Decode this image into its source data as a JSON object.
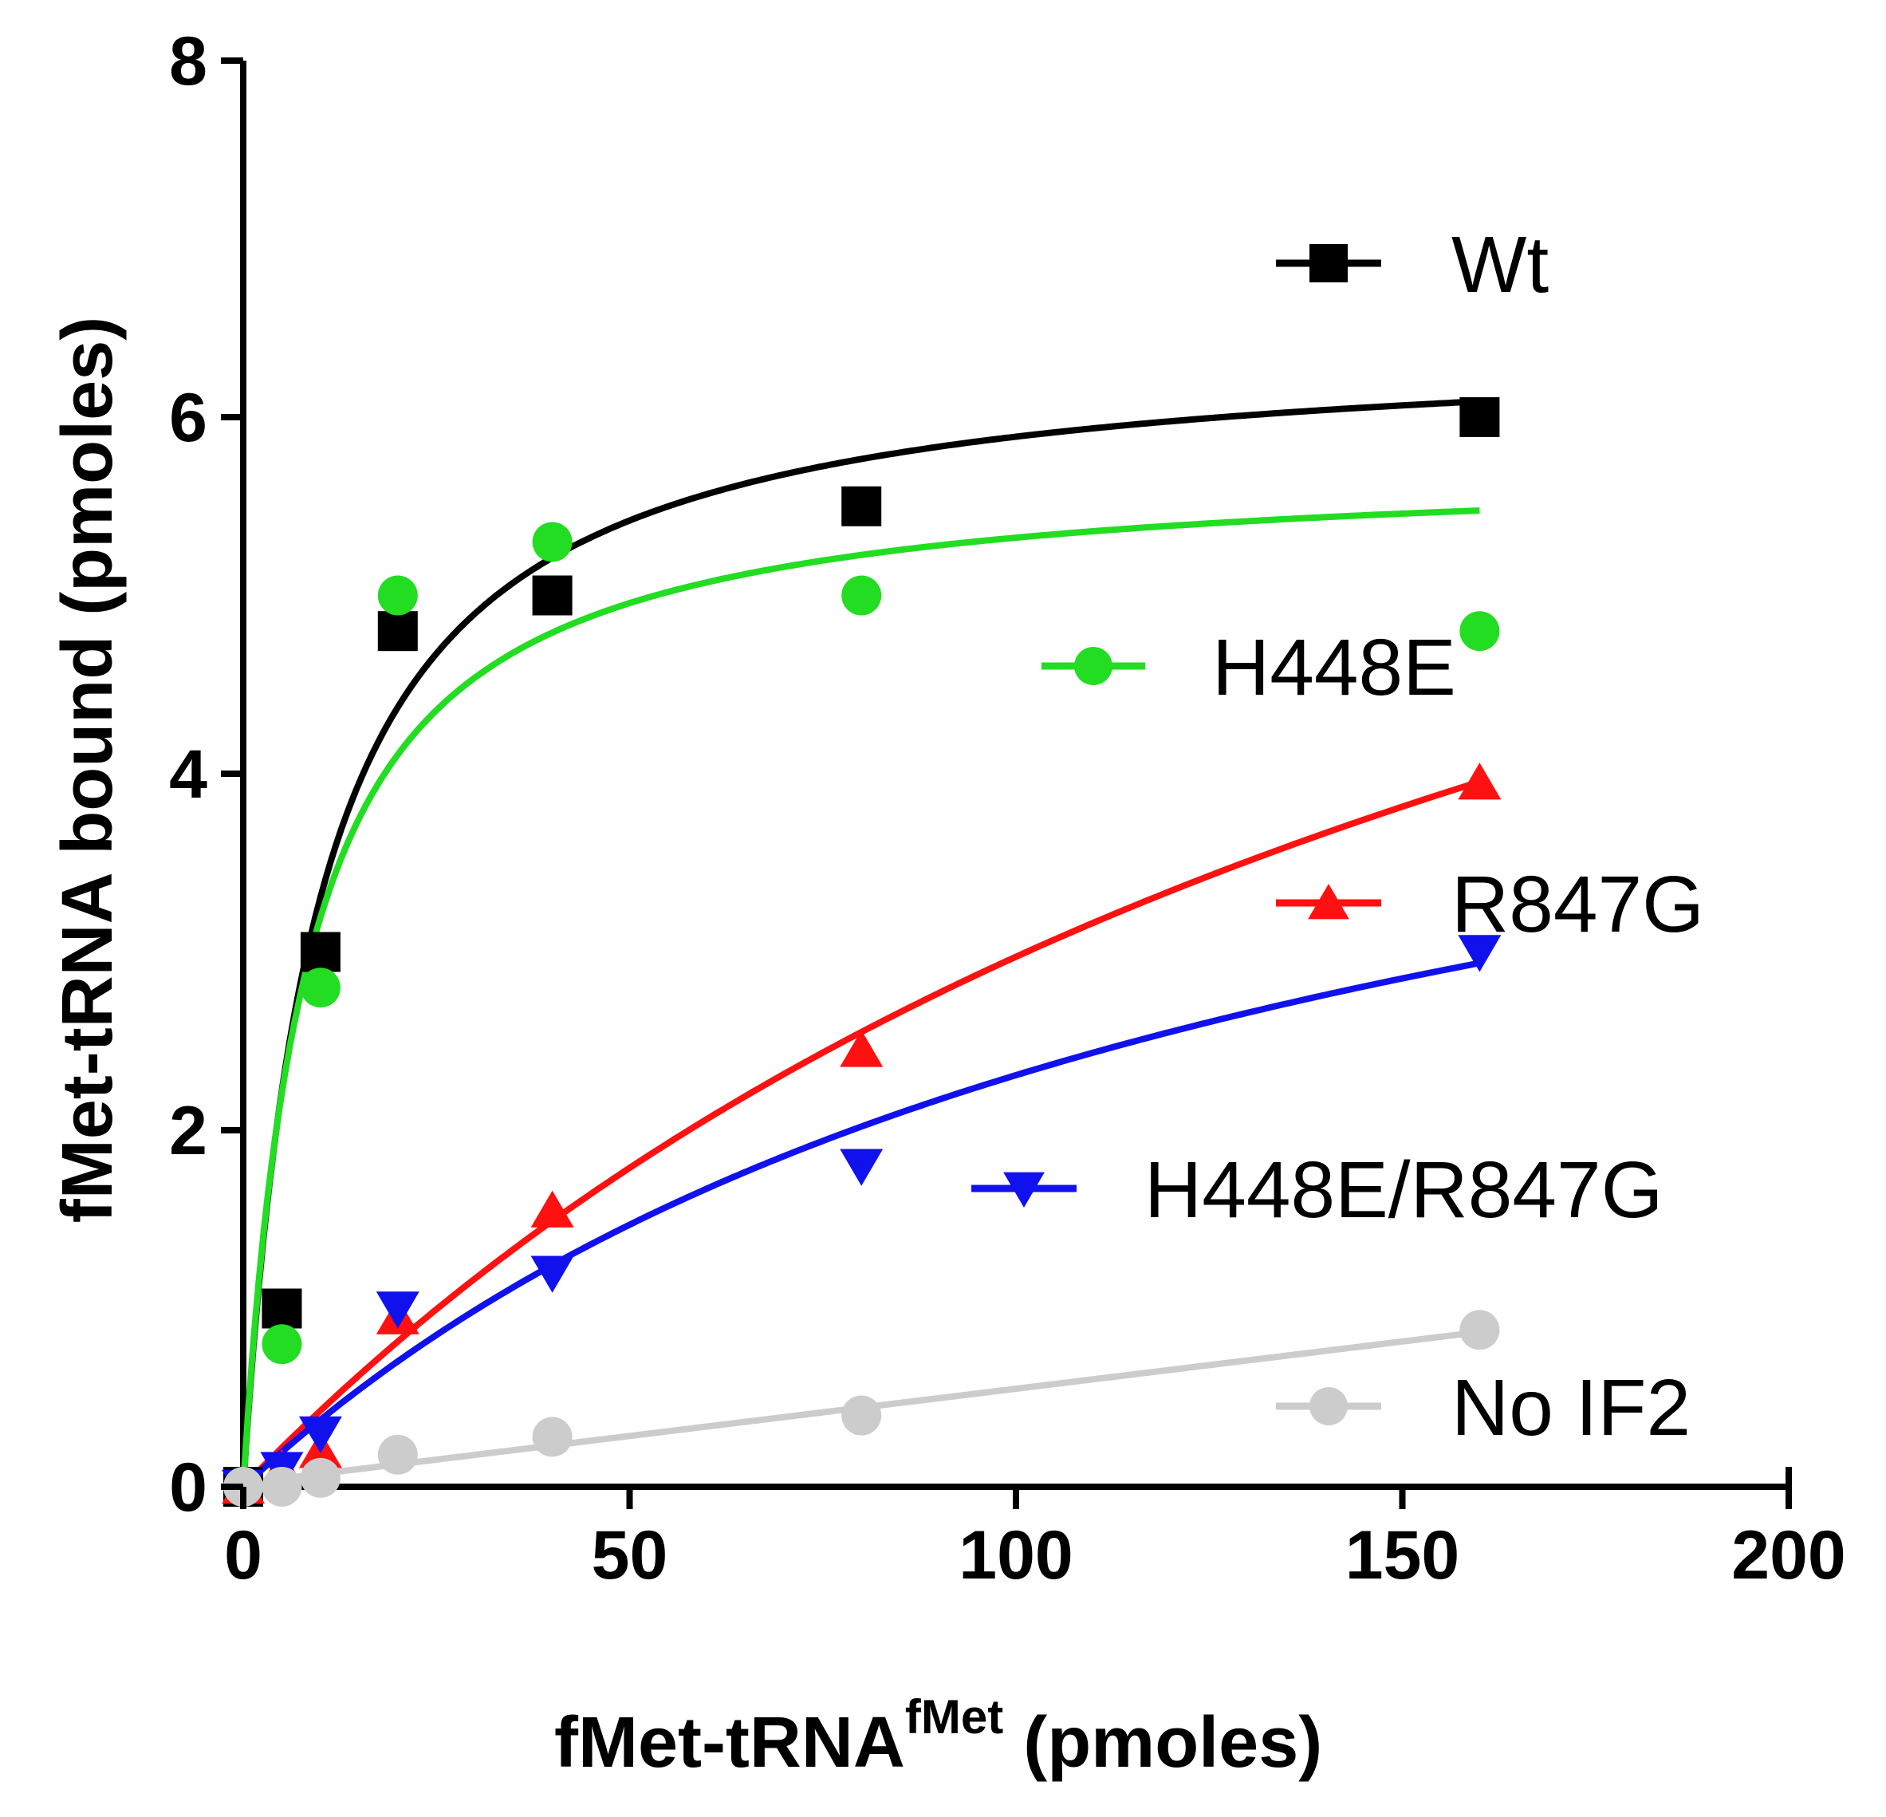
{
  "chart_data": {
    "type": "scatter",
    "xlabel": {
      "main": "fMet-tRNA",
      "superscript": "fMet",
      "suffix": " (pmoles)"
    },
    "ylabel": "fMet-tRNA bound (pmoles)",
    "xlim": [
      0,
      200
    ],
    "ylim": [
      0,
      8
    ],
    "xticks": [
      "0",
      "50",
      "100",
      "150",
      "200"
    ],
    "yticks": [
      "0",
      "2",
      "4",
      "6",
      "8"
    ],
    "xtick_values": [
      0,
      50,
      100,
      150,
      200
    ],
    "ytick_values": [
      0,
      2,
      4,
      6,
      8
    ],
    "grid": false,
    "legend_position": "right",
    "series": [
      {
        "name": "Wt",
        "color": "#000000",
        "marker": "square",
        "x": [
          0,
          5,
          10,
          20,
          40,
          80,
          160
        ],
        "y": [
          0,
          1.0,
          3.0,
          4.8,
          5.0,
          5.5,
          6.0
        ],
        "fit": {
          "model": "hyperbolic",
          "bmax": 6.45,
          "kd": 9.5
        }
      },
      {
        "name": "H448E",
        "color": "#22dd22",
        "marker": "circle",
        "x": [
          0,
          5,
          10,
          20,
          40,
          80,
          160
        ],
        "y": [
          0,
          0.8,
          2.8,
          5.0,
          5.3,
          5.0,
          4.8
        ],
        "fit": {
          "model": "hyperbolic",
          "bmax": 5.75,
          "kd": 8.0
        }
      },
      {
        "name": "R847G",
        "color": "#ff1111",
        "marker": "triangle-up",
        "x": [
          0,
          5,
          10,
          20,
          40,
          80,
          160
        ],
        "y": [
          0,
          0.1,
          0.2,
          0.95,
          1.55,
          2.45,
          3.95
        ],
        "fit": {
          "model": "hyperbolic",
          "bmax": 8.8,
          "kd": 196
        }
      },
      {
        "name": "H448E/R847G",
        "color": "#1111ee",
        "marker": "triangle-down",
        "x": [
          0,
          5,
          10,
          20,
          40,
          80,
          160
        ],
        "y": [
          0,
          0.1,
          0.3,
          1.0,
          1.2,
          1.8,
          3.0
        ],
        "fit": {
          "model": "hyperbolic",
          "bmax": 5.38,
          "kd": 133
        }
      },
      {
        "name": "No IF2",
        "color": "#cccccc",
        "marker": "circle",
        "x": [
          0,
          5,
          10,
          20,
          40,
          80,
          160
        ],
        "y": [
          0,
          0.0,
          0.05,
          0.18,
          0.28,
          0.4,
          0.88
        ],
        "fit": {
          "model": "linear",
          "slope": 0.0053,
          "intercept": 0.02
        }
      }
    ]
  }
}
